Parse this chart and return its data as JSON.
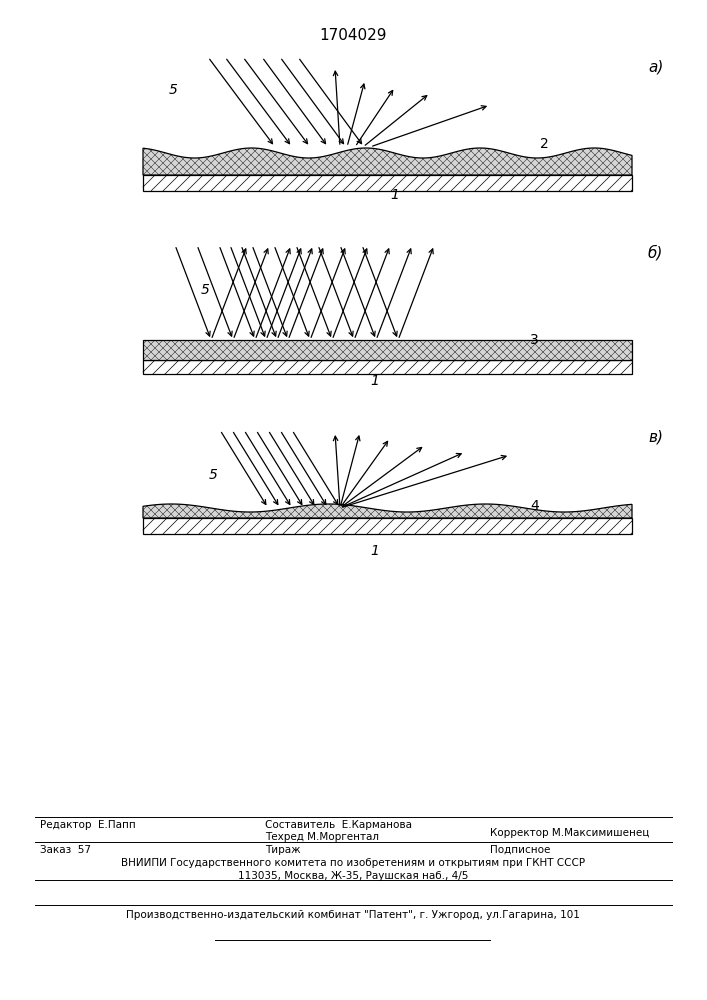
{
  "title": "1704029",
  "panel_labels": [
    "а)",
    "б)",
    "в)"
  ],
  "label_5": "5",
  "labels_surface": [
    "2",
    "3",
    "4"
  ],
  "label_1": "1",
  "bg_color": "#ffffff",
  "line_color": "#000000",
  "footer": {
    "line1_left": "Редактор  Е.Папп",
    "line1_mid_top": "Составитель  Е.Карманова",
    "line1_mid_bot": "Техред М.Моргентал",
    "line1_right": "Корректор М.Максимишенец",
    "line2_left": "Заказ  57",
    "line2_mid": "Тираж",
    "line2_right": "Подписное",
    "line3": "ВНИИПИ Государственного комитета по изобретениям и открытиям при ГКНТ СССР",
    "line4": "113035, Москва, Ж-35, Раушская наб., 4/5",
    "line5": "Производственно-издательский комбинат \"Патент\", г. Ужгород, ул.Гагарина, 101"
  }
}
